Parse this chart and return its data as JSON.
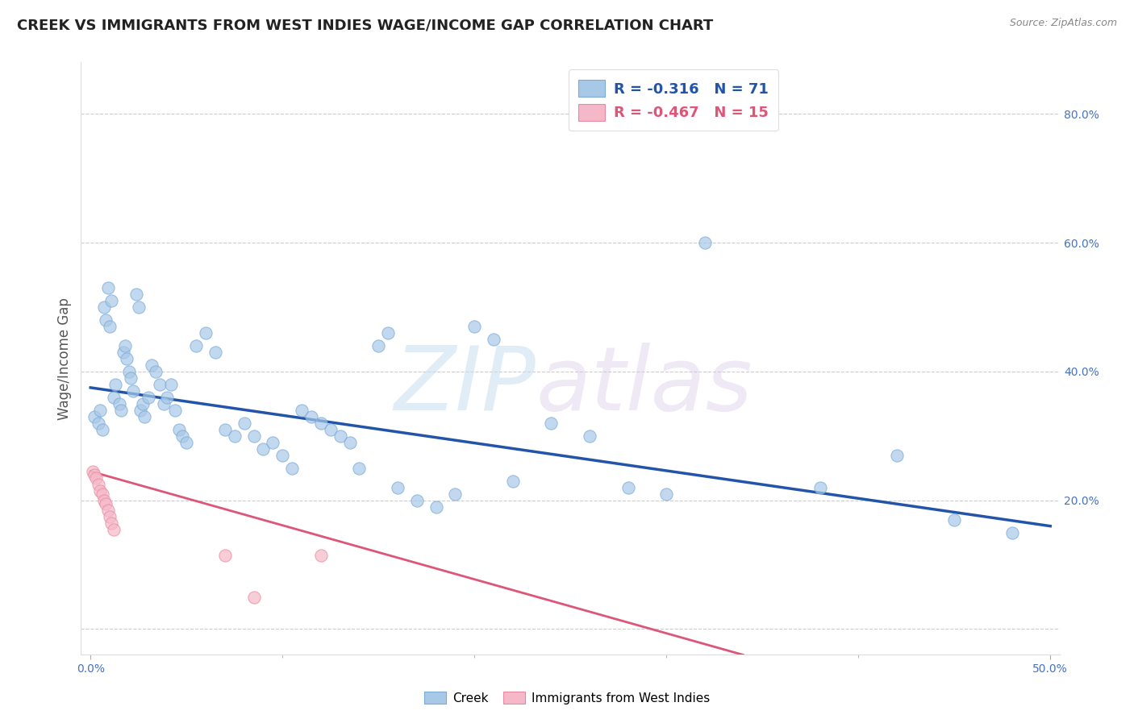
{
  "title": "CREEK VS IMMIGRANTS FROM WEST INDIES WAGE/INCOME GAP CORRELATION CHART",
  "source": "Source: ZipAtlas.com",
  "ylabel": "Wage/Income Gap",
  "xlim": [
    -0.005,
    0.505
  ],
  "ylim": [
    -0.04,
    0.88
  ],
  "xticks": [
    0.0,
    0.5
  ],
  "xticklabels": [
    "0.0%",
    "50.0%"
  ],
  "yticks": [
    0.0,
    0.2,
    0.4,
    0.6,
    0.8
  ],
  "yticklabels": [
    "",
    "20.0%",
    "40.0%",
    "60.0%",
    "80.0%"
  ],
  "blue_color": "#a8c8e8",
  "blue_edge_color": "#7baad4",
  "pink_color": "#f4b8c8",
  "pink_edge_color": "#e88aa0",
  "blue_line_color": "#2255aa",
  "pink_line_color": "#dd5577",
  "background_color": "#ffffff",
  "grid_color": "#cccccc",
  "title_color": "#222222",
  "axis_label_color": "#555555",
  "tick_color": "#4472c4",
  "legend_r1": "R = -0.316",
  "legend_n1": "N = 71",
  "legend_r2": "R = -0.467",
  "legend_n2": "N = 15",
  "watermark_zip": "ZIP",
  "watermark_atlas": "atlas",
  "blue_trend_x": [
    0.0,
    0.5
  ],
  "blue_trend_y": [
    0.375,
    0.16
  ],
  "pink_trend_x": [
    0.0,
    0.34
  ],
  "pink_trend_y": [
    0.245,
    -0.04
  ],
  "blue_x": [
    0.002,
    0.004,
    0.005,
    0.006,
    0.007,
    0.008,
    0.009,
    0.01,
    0.011,
    0.012,
    0.013,
    0.015,
    0.016,
    0.017,
    0.018,
    0.019,
    0.02,
    0.021,
    0.022,
    0.024,
    0.025,
    0.026,
    0.027,
    0.028,
    0.03,
    0.032,
    0.034,
    0.036,
    0.038,
    0.04,
    0.042,
    0.044,
    0.046,
    0.048,
    0.05,
    0.055,
    0.06,
    0.065,
    0.07,
    0.075,
    0.08,
    0.085,
    0.09,
    0.095,
    0.1,
    0.105,
    0.11,
    0.115,
    0.12,
    0.125,
    0.13,
    0.135,
    0.14,
    0.15,
    0.155,
    0.16,
    0.17,
    0.18,
    0.19,
    0.2,
    0.21,
    0.22,
    0.24,
    0.26,
    0.28,
    0.3,
    0.32,
    0.38,
    0.42,
    0.45,
    0.48
  ],
  "blue_y": [
    0.33,
    0.32,
    0.34,
    0.31,
    0.5,
    0.48,
    0.53,
    0.47,
    0.51,
    0.36,
    0.38,
    0.35,
    0.34,
    0.43,
    0.44,
    0.42,
    0.4,
    0.39,
    0.37,
    0.52,
    0.5,
    0.34,
    0.35,
    0.33,
    0.36,
    0.41,
    0.4,
    0.38,
    0.35,
    0.36,
    0.38,
    0.34,
    0.31,
    0.3,
    0.29,
    0.44,
    0.46,
    0.43,
    0.31,
    0.3,
    0.32,
    0.3,
    0.28,
    0.29,
    0.27,
    0.25,
    0.34,
    0.33,
    0.32,
    0.31,
    0.3,
    0.29,
    0.25,
    0.44,
    0.46,
    0.22,
    0.2,
    0.19,
    0.21,
    0.47,
    0.45,
    0.23,
    0.32,
    0.3,
    0.22,
    0.21,
    0.6,
    0.22,
    0.27,
    0.17,
    0.15
  ],
  "pink_x": [
    0.001,
    0.002,
    0.003,
    0.004,
    0.005,
    0.006,
    0.007,
    0.008,
    0.009,
    0.01,
    0.011,
    0.012,
    0.07,
    0.085,
    0.12
  ],
  "pink_y": [
    0.245,
    0.24,
    0.235,
    0.225,
    0.215,
    0.21,
    0.2,
    0.195,
    0.185,
    0.175,
    0.165,
    0.155,
    0.115,
    0.05,
    0.115
  ],
  "dot_size": 120,
  "dot_alpha": 0.7,
  "dot_linewidth": 0.8
}
